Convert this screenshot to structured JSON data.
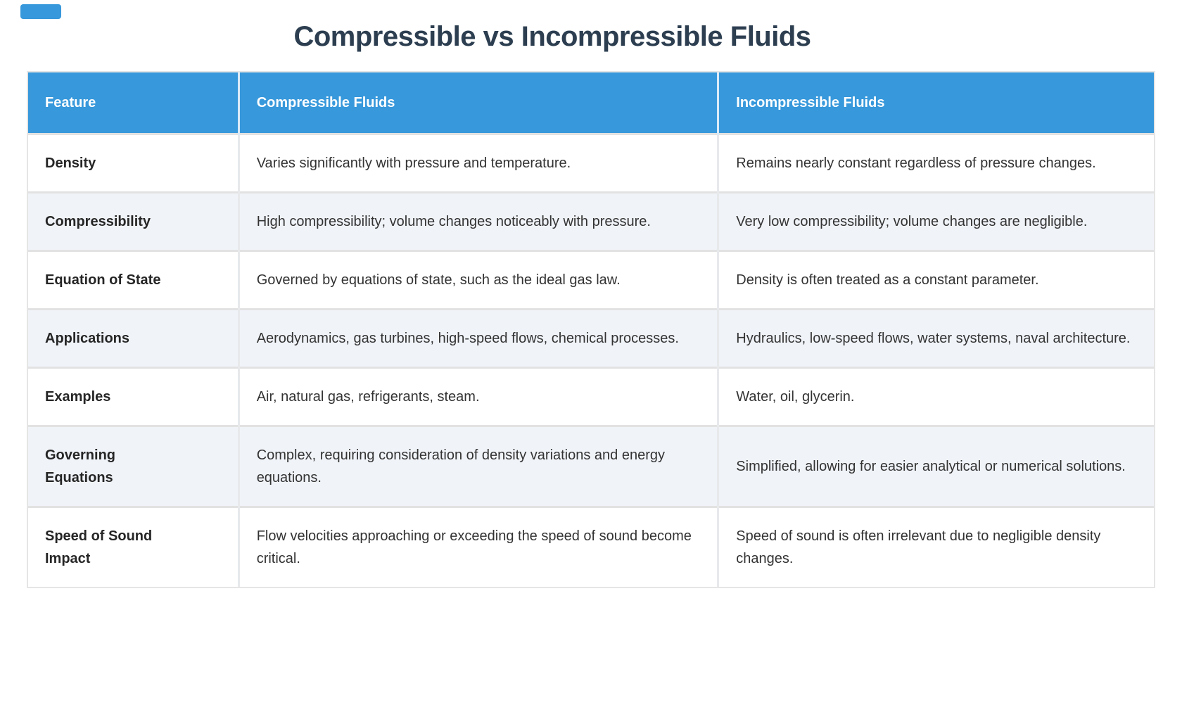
{
  "page": {
    "title": "Compressible vs Incompressible Fluids"
  },
  "colors": {
    "header_bg": "#3798db",
    "header_text": "#ffffff",
    "title_color": "#2c3e50",
    "row_alt_bg": "#f0f3f8",
    "row_bg": "#ffffff",
    "border_color": "#e2e2e2",
    "header_divider": "#d9eaf8",
    "text_color": "#333333",
    "feature_text_color": "#262626"
  },
  "table": {
    "columns": [
      "Feature",
      "Compressible Fluids",
      "Incompressible Fluids"
    ],
    "rows": [
      {
        "feature": "Density",
        "compressible": "Varies significantly with pressure and temperature.",
        "incompressible": "Remains nearly constant regardless of pressure changes."
      },
      {
        "feature": "Compressibility",
        "compressible": "High compressibility; volume changes noticeably with pressure.",
        "incompressible": "Very low compressibility; volume changes are negligible."
      },
      {
        "feature": "Equation of State",
        "compressible": "Governed by equations of state, such as the ideal gas law.",
        "incompressible": "Density is often treated as a constant parameter."
      },
      {
        "feature": "Applications",
        "compressible": "Aerodynamics, gas turbines, high-speed flows, chemical processes.",
        "incompressible": "Hydraulics, low-speed flows, water systems, naval architecture."
      },
      {
        "feature": "Examples",
        "compressible": "Air, natural gas, refrigerants, steam.",
        "incompressible": "Water, oil, glycerin."
      },
      {
        "feature": "Governing\nEquations",
        "compressible": "Complex, requiring consideration of density variations and energy equations.",
        "incompressible": "Simplified, allowing for easier analytical or numerical solutions."
      },
      {
        "feature": "Speed of Sound\nImpact",
        "compressible": "Flow velocities approaching or exceeding the speed of sound become critical.",
        "incompressible": "Speed of sound is often irrelevant due to negligible density changes."
      }
    ]
  }
}
